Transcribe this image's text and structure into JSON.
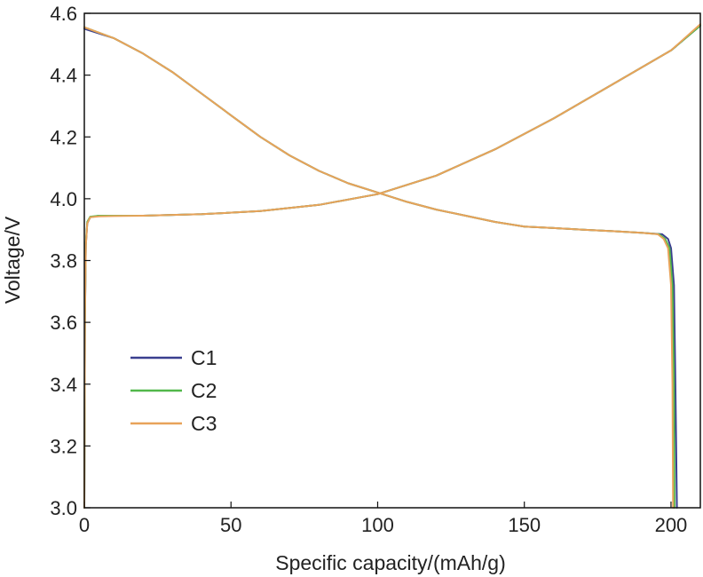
{
  "chart_data": {
    "type": "line",
    "title": "",
    "xlabel": "Specific capacity/(mAh/g)",
    "ylabel": "Voltage/V",
    "xlim": [
      0,
      210
    ],
    "ylim": [
      3.0,
      4.6
    ],
    "xticks": [
      0,
      50,
      100,
      150,
      200
    ],
    "xtick_labels": [
      "0",
      "50",
      "100",
      "150",
      "200"
    ],
    "yticks": [
      3.0,
      3.2,
      3.4,
      3.6,
      3.8,
      4.0,
      4.2,
      4.4,
      4.6
    ],
    "ytick_labels": [
      "3.0",
      "3.2",
      "3.4",
      "3.6",
      "3.8",
      "4.0",
      "4.2",
      "4.4",
      "4.6"
    ],
    "grid": false,
    "legend_position": "lower-left",
    "series": [
      {
        "name": "C1",
        "color": "#3a3f8f",
        "charge": {
          "x": [
            0,
            0.2,
            0.5,
            1,
            2,
            5,
            10,
            20,
            40,
            60,
            80,
            100,
            120,
            140,
            160,
            180,
            200,
            210
          ],
          "y": [
            3.0,
            3.6,
            3.85,
            3.92,
            3.94,
            3.945,
            3.945,
            3.945,
            3.95,
            3.96,
            3.98,
            4.015,
            4.075,
            4.16,
            4.26,
            4.37,
            4.48,
            4.56
          ]
        },
        "discharge": {
          "x": [
            0,
            10,
            20,
            30,
            40,
            50,
            60,
            70,
            80,
            90,
            100,
            110,
            120,
            130,
            140,
            150,
            160,
            170,
            180,
            190,
            197,
            199,
            200,
            201,
            201.5,
            202
          ],
          "y": [
            4.55,
            4.52,
            4.47,
            4.41,
            4.34,
            4.27,
            4.2,
            4.14,
            4.09,
            4.05,
            4.02,
            3.99,
            3.965,
            3.945,
            3.925,
            3.91,
            3.905,
            3.9,
            3.895,
            3.89,
            3.885,
            3.87,
            3.84,
            3.72,
            3.4,
            3.0
          ]
        }
      },
      {
        "name": "C2",
        "color": "#52b84a",
        "charge": {
          "x": [
            0,
            0.2,
            0.5,
            1,
            2,
            5,
            10,
            20,
            40,
            60,
            80,
            100,
            120,
            140,
            160,
            180,
            200,
            210
          ],
          "y": [
            3.0,
            3.62,
            3.86,
            3.925,
            3.942,
            3.945,
            3.945,
            3.945,
            3.95,
            3.96,
            3.98,
            4.015,
            4.075,
            4.16,
            4.26,
            4.37,
            4.48,
            4.56
          ]
        },
        "discharge": {
          "x": [
            0,
            10,
            20,
            30,
            40,
            50,
            60,
            70,
            80,
            90,
            100,
            110,
            120,
            130,
            140,
            150,
            160,
            170,
            180,
            190,
            196,
            198,
            199.5,
            200.5,
            201,
            201.2
          ],
          "y": [
            4.555,
            4.52,
            4.47,
            4.41,
            4.34,
            4.27,
            4.2,
            4.14,
            4.09,
            4.05,
            4.02,
            3.99,
            3.965,
            3.945,
            3.925,
            3.91,
            3.905,
            3.9,
            3.895,
            3.89,
            3.885,
            3.87,
            3.84,
            3.72,
            3.4,
            3.0
          ]
        }
      },
      {
        "name": "C3",
        "color": "#e8a35a",
        "charge": {
          "x": [
            0,
            0.2,
            0.5,
            1,
            2,
            5,
            10,
            20,
            40,
            60,
            80,
            100,
            120,
            140,
            160,
            180,
            200,
            210
          ],
          "y": [
            3.0,
            3.61,
            3.85,
            3.92,
            3.94,
            3.943,
            3.944,
            3.945,
            3.95,
            3.96,
            3.98,
            4.015,
            4.075,
            4.16,
            4.26,
            4.37,
            4.48,
            4.565
          ]
        },
        "discharge": {
          "x": [
            0,
            10,
            20,
            30,
            40,
            50,
            60,
            70,
            80,
            90,
            100,
            110,
            120,
            130,
            140,
            150,
            160,
            170,
            180,
            190,
            195.5,
            197.5,
            199,
            200,
            200.5,
            200.7
          ],
          "y": [
            4.555,
            4.52,
            4.47,
            4.41,
            4.34,
            4.27,
            4.2,
            4.14,
            4.09,
            4.05,
            4.02,
            3.99,
            3.965,
            3.945,
            3.925,
            3.91,
            3.905,
            3.9,
            3.895,
            3.89,
            3.885,
            3.87,
            3.84,
            3.72,
            3.4,
            3.0
          ]
        }
      }
    ]
  }
}
